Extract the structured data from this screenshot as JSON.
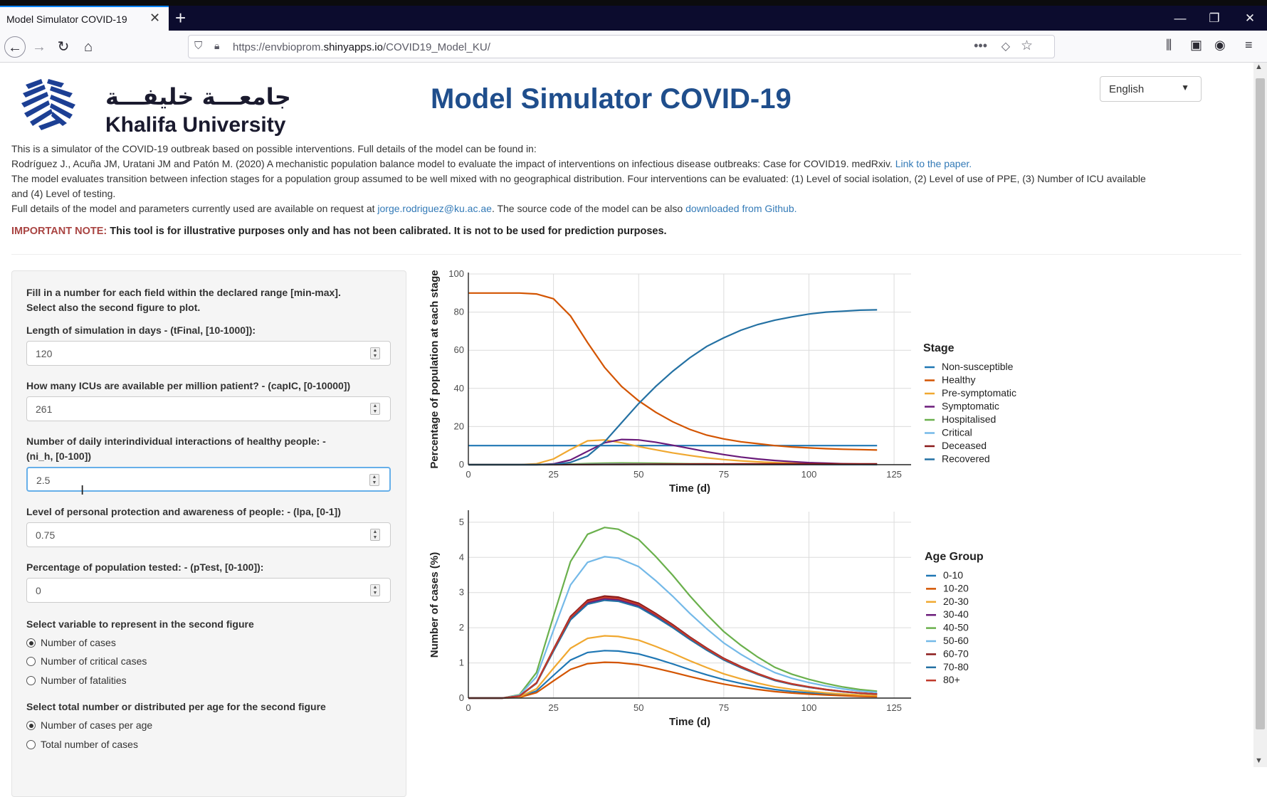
{
  "browser": {
    "tab_title": "Model Simulator COVID-19",
    "url_prefix": "https://envbioprom.",
    "url_domain": "shinyapps.io",
    "url_path": "/COVID19_Model_KU/"
  },
  "header": {
    "logo_arabic": "جامعـــة خليفـــة",
    "logo_english": "Khalifa University",
    "title": "Model Simulator COVID-19",
    "language": "English"
  },
  "intro": {
    "line1": "This is a simulator of the COVID-19 outbreak based on possible interventions. Full details of the model can be found in:",
    "line2": "Rodríguez J., Acuña JM, Uratani JM and Patón M. (2020) A mechanistic population balance model to evaluate the impact of interventions on infectious disease outbreaks: Case for COVID19. medRxiv. ",
    "line2_link": "Link to the paper.",
    "line3": "The model evaluates transition between infection stages for a population group assumed to be well mixed with no geographical distribution. Four interventions can be evaluated: (1) Level of social isolation, (2) Level of use of PPE, (3) Number of ICU available",
    "line4": "and (4) Level of testing.",
    "line5a": "Full details of the model and parameters currently used are available on request at ",
    "email": "jorge.rodriguez@ku.ac.ae",
    "line5b": ". The source code of the model can be also ",
    "github": "downloaded from Github.",
    "note_label": "IMPORTANT NOTE:",
    "note_text": " This tool is for illustrative purposes only and has not been calibrated. It is not to be used for prediction purposes."
  },
  "sidebar": {
    "instructions1": "Fill in a number for each field within the declared range [min-max].",
    "instructions2": "Select also the second figure to plot.",
    "tfinal_label": "Length of simulation in days - (tFinal, [10-1000]):",
    "tfinal_value": "120",
    "capic_label": "How many ICUs are available per million patient? - (capIC, [0-10000])",
    "capic_value": "261",
    "nih_label1": "Number of daily interindividual interactions of healthy people: -",
    "nih_label2": "(ni_h, [0-100])",
    "nih_value": "2.5",
    "lpa_label": "Level of personal protection and awareness of people: - (lpa, [0-1])",
    "lpa_value": "0.75",
    "ptest_label": "Percentage of population tested: - (pTest, [0-100]):",
    "ptest_value": "0",
    "var_label": "Select variable to represent in the second figure",
    "var_options": [
      "Number of cases",
      "Number of critical cases",
      "Number of fatalities"
    ],
    "var_selected": 0,
    "dist_label": "Select total number or distributed per age for the second figure",
    "dist_options": [
      "Number of cases per age",
      "Total number of cases"
    ],
    "dist_selected": 0
  },
  "chart_data": [
    {
      "type": "line",
      "xlabel": "Time (d)",
      "ylabel": "Percentage of population at each stage",
      "xlim": [
        0,
        130
      ],
      "ylim": [
        0,
        100
      ],
      "xticks": [
        0,
        25,
        50,
        75,
        100,
        125
      ],
      "yticks": [
        0,
        20,
        40,
        60,
        80,
        100
      ],
      "grid": true,
      "legend_title": "Stage",
      "legend_position": "right",
      "x": [
        0,
        10,
        15,
        20,
        25,
        30,
        35,
        40,
        45,
        50,
        55,
        60,
        65,
        70,
        75,
        80,
        85,
        90,
        95,
        100,
        105,
        110,
        115,
        120
      ],
      "series": [
        {
          "name": "Non-susceptible",
          "color": "#1f77b4",
          "values": [
            10,
            10,
            10,
            10,
            10,
            10,
            10,
            10,
            10,
            10,
            10,
            10,
            10,
            10,
            10,
            10,
            10,
            10,
            10,
            10,
            10,
            10,
            10,
            10
          ]
        },
        {
          "name": "Healthy",
          "color": "#d35400",
          "values": [
            90,
            90,
            90,
            89.5,
            87,
            78,
            64,
            51,
            41,
            33.5,
            27.5,
            22.5,
            18.5,
            15.5,
            13.5,
            12,
            11,
            10,
            9.3,
            8.8,
            8.4,
            8.1,
            7.9,
            7.7
          ]
        },
        {
          "name": "Pre-symptomatic",
          "color": "#f0a830",
          "values": [
            0,
            0,
            0,
            0.5,
            3,
            8,
            12.5,
            13,
            11.5,
            9.5,
            7.8,
            6.2,
            4.8,
            3.6,
            2.7,
            2,
            1.5,
            1.1,
            0.8,
            0.6,
            0.4,
            0.3,
            0.2,
            0.1
          ]
        },
        {
          "name": "Symptomatic",
          "color": "#6a1b7a",
          "values": [
            0,
            0,
            0,
            0,
            0.4,
            2.5,
            7,
            11.5,
            13.2,
            13,
            11.8,
            10.2,
            8.5,
            6.8,
            5.3,
            4,
            3,
            2.2,
            1.6,
            1.1,
            0.8,
            0.5,
            0.35,
            0.25
          ]
        },
        {
          "name": "Hospitalised",
          "color": "#6ab04c",
          "values": [
            0,
            0,
            0,
            0,
            0.1,
            0.3,
            0.6,
            0.8,
            0.9,
            0.85,
            0.75,
            0.6,
            0.5,
            0.4,
            0.3,
            0.22,
            0.16,
            0.12,
            0.09,
            0.06,
            0.04,
            0.03,
            0.02,
            0.01
          ]
        },
        {
          "name": "Critical",
          "color": "#74b9e8",
          "values": [
            0,
            0,
            0,
            0,
            0.05,
            0.1,
            0.2,
            0.3,
            0.35,
            0.35,
            0.3,
            0.25,
            0.2,
            0.15,
            0.1,
            0.08,
            0.06,
            0.04,
            0.03,
            0.02,
            0.01,
            0.01,
            0,
            0
          ]
        },
        {
          "name": "Deceased",
          "color": "#8b1a1a",
          "values": [
            0,
            0,
            0,
            0,
            0,
            0.02,
            0.05,
            0.1,
            0.15,
            0.2,
            0.25,
            0.3,
            0.33,
            0.36,
            0.38,
            0.4,
            0.41,
            0.42,
            0.43,
            0.43,
            0.44,
            0.44,
            0.44,
            0.44
          ]
        },
        {
          "name": "Recovered",
          "color": "#2471a3",
          "values": [
            0,
            0,
            0,
            0,
            0.1,
            1.2,
            4.5,
            12,
            22,
            32,
            41,
            49,
            56,
            62,
            66.5,
            70.5,
            73.5,
            75.8,
            77.5,
            79,
            80,
            80.5,
            81,
            81.2
          ]
        }
      ]
    },
    {
      "type": "line",
      "xlabel": "Time (d)",
      "ylabel": "Number of cases (%)",
      "xlim": [
        0,
        130
      ],
      "ylim": [
        0,
        5.3
      ],
      "xticks": [
        0,
        25,
        50,
        75,
        100,
        125
      ],
      "yticks": [
        0,
        1,
        2,
        3,
        4,
        5
      ],
      "grid": true,
      "legend_title": "Age Group",
      "legend_position": "right",
      "x": [
        0,
        10,
        15,
        20,
        25,
        30,
        35,
        40,
        44,
        50,
        55,
        60,
        65,
        70,
        75,
        80,
        85,
        90,
        95,
        100,
        105,
        110,
        115,
        120
      ],
      "series": [
        {
          "name": "0-10",
          "color": "#1f77b4",
          "peak": 1.35
        },
        {
          "name": "10-20",
          "color": "#d35400",
          "peak": 1.02
        },
        {
          "name": "20-30",
          "color": "#f0a830",
          "peak": 1.77
        },
        {
          "name": "30-40",
          "color": "#6a1b7a",
          "peak": 2.82
        },
        {
          "name": "40-50",
          "color": "#6ab04c",
          "peak": 4.85
        },
        {
          "name": "50-60",
          "color": "#74b9e8",
          "peak": 4.02
        },
        {
          "name": "60-70",
          "color": "#8b1a1a",
          "peak": 2.9
        },
        {
          "name": "70-80",
          "color": "#2471a3",
          "peak": 2.78
        },
        {
          "name": "80+",
          "color": "#c0392b",
          "peak": 2.86
        }
      ],
      "shape": [
        0,
        0,
        0.02,
        0.15,
        0.48,
        0.8,
        0.96,
        1.0,
        0.99,
        0.93,
        0.83,
        0.72,
        0.6,
        0.49,
        0.39,
        0.31,
        0.24,
        0.18,
        0.14,
        0.11,
        0.085,
        0.065,
        0.05,
        0.04
      ]
    }
  ]
}
